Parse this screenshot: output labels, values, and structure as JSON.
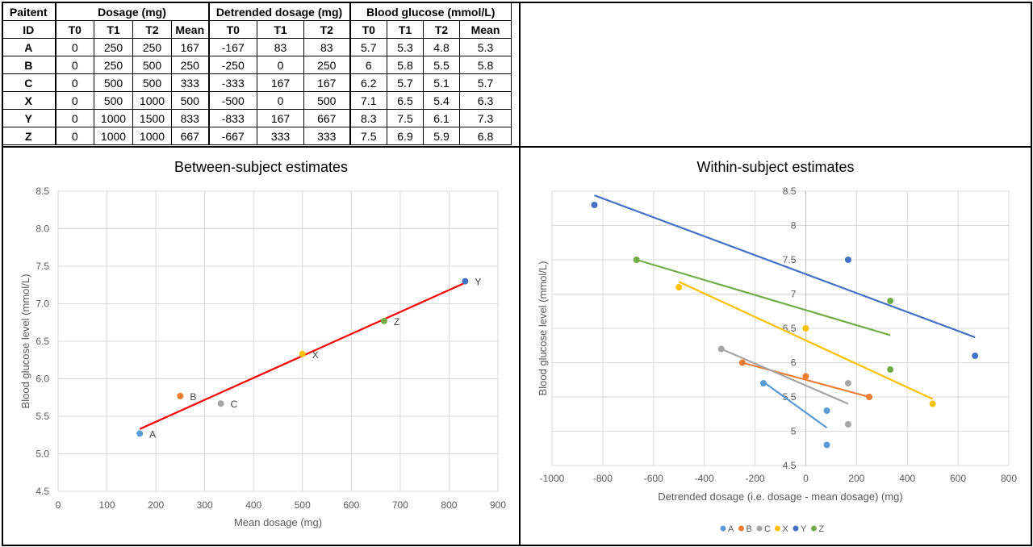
{
  "table": {
    "header_id": [
      "Paitent",
      "ID"
    ],
    "groups": [
      "Dosage (mg)",
      "Detrended dosage (mg)",
      "Blood glucose (mmol/L)"
    ],
    "subheaders": [
      "T0",
      "T1",
      "T2",
      "Mean",
      "T0",
      "T1",
      "T2",
      "T0",
      "T1",
      "T2",
      "Mean"
    ],
    "rows": [
      [
        "A",
        "0",
        "250",
        "250",
        "167",
        "-167",
        "83",
        "83",
        "5.7",
        "5.3",
        "4.8",
        "5.3"
      ],
      [
        "B",
        "0",
        "250",
        "500",
        "250",
        "-250",
        "0",
        "250",
        "6",
        "5.8",
        "5.5",
        "5.8"
      ],
      [
        "C",
        "0",
        "500",
        "500",
        "333",
        "-333",
        "167",
        "167",
        "6.2",
        "5.7",
        "5.1",
        "5.7"
      ],
      [
        "X",
        "0",
        "500",
        "1000",
        "500",
        "-500",
        "0",
        "500",
        "7.1",
        "6.5",
        "5.4",
        "6.3"
      ],
      [
        "Y",
        "0",
        "1000",
        "1500",
        "833",
        "-833",
        "167",
        "667",
        "8.3",
        "7.5",
        "6.1",
        "7.3"
      ],
      [
        "Z",
        "0",
        "1000",
        "1000",
        "667",
        "-667",
        "333",
        "333",
        "7.5",
        "6.9",
        "5.9",
        "6.8"
      ]
    ]
  },
  "chart_data": [
    {
      "type": "scatter",
      "title": "Between-subject estimates",
      "xlabel": "Mean dosage (mg)",
      "ylabel": "Blood glucose level (mmol/L)",
      "xlim": [
        0,
        900
      ],
      "ylim": [
        4.5,
        8.5
      ],
      "xticks": [
        "0",
        "100",
        "200",
        "300",
        "400",
        "500",
        "600",
        "700",
        "800",
        "900"
      ],
      "yticks": [
        "4.5",
        "5.0",
        "5.5",
        "6.0",
        "6.5",
        "7.0",
        "7.5",
        "8.0",
        "8.5"
      ],
      "grid": true,
      "points": [
        {
          "label": "A",
          "x": 167,
          "y": 5.27,
          "color": "#5b9bd5"
        },
        {
          "label": "B",
          "x": 250,
          "y": 5.77,
          "color": "#ed7d31"
        },
        {
          "label": "C",
          "x": 333,
          "y": 5.67,
          "color": "#a5a5a5"
        },
        {
          "label": "X",
          "x": 500,
          "y": 6.33,
          "color": "#ffc000"
        },
        {
          "label": "Y",
          "x": 833,
          "y": 7.3,
          "color": "#4472c4"
        },
        {
          "label": "Z",
          "x": 667,
          "y": 6.77,
          "color": "#70ad47"
        }
      ],
      "trendline": {
        "x": [
          167,
          833
        ],
        "y": [
          5.33,
          7.28
        ],
        "color": "#ff0000"
      }
    },
    {
      "type": "scatter",
      "title": "Within-subject estimates",
      "xlabel": "Detrended dosage (i.e. dosage - mean dosage) (mg)",
      "ylabel": "Blood glucose level (mmol/L)",
      "xlim": [
        -1000,
        800
      ],
      "ylim": [
        4.5,
        8.5
      ],
      "xticks": [
        "-1000",
        "-800",
        "-600",
        "-400",
        "-200",
        "0",
        "200",
        "400",
        "600",
        "800"
      ],
      "yticks": [
        "4.5",
        "5",
        "5.5",
        "6",
        "6.5",
        "7",
        "7.5",
        "8",
        "8.5"
      ],
      "grid": true,
      "legend_position": "bottom",
      "series": [
        {
          "name": "A",
          "color": "#5b9bd5",
          "x": [
            -167,
            83,
            83
          ],
          "y": [
            5.7,
            5.3,
            4.8
          ],
          "trend": {
            "x": [
              -167,
              83
            ],
            "y": [
              5.72,
              5.05
            ]
          }
        },
        {
          "name": "B",
          "color": "#ed7d31",
          "x": [
            -250,
            0,
            250
          ],
          "y": [
            6.0,
            5.8,
            5.5
          ],
          "trend": {
            "x": [
              -250,
              250
            ],
            "y": [
              6.0,
              5.5
            ]
          }
        },
        {
          "name": "C",
          "color": "#a5a5a5",
          "x": [
            -333,
            167,
            167
          ],
          "y": [
            6.2,
            5.7,
            5.1
          ],
          "trend": {
            "x": [
              -333,
              167
            ],
            "y": [
              6.2,
              5.4
            ]
          }
        },
        {
          "name": "X",
          "color": "#ffc000",
          "x": [
            -500,
            0,
            500
          ],
          "y": [
            7.1,
            6.5,
            5.4
          ],
          "trend": {
            "x": [
              -500,
              500
            ],
            "y": [
              7.18,
              5.47
            ]
          }
        },
        {
          "name": "Y",
          "color": "#4472c4",
          "x": [
            -833,
            167,
            667
          ],
          "y": [
            8.3,
            7.5,
            6.1
          ],
          "trend": {
            "x": [
              -833,
              667
            ],
            "y": [
              8.44,
              6.37
            ]
          }
        },
        {
          "name": "Z",
          "color": "#70ad47",
          "x": [
            -667,
            333,
            333
          ],
          "y": [
            7.5,
            6.9,
            5.9
          ],
          "trend": {
            "x": [
              -667,
              333
            ],
            "y": [
              7.5,
              6.4
            ]
          }
        }
      ]
    }
  ]
}
